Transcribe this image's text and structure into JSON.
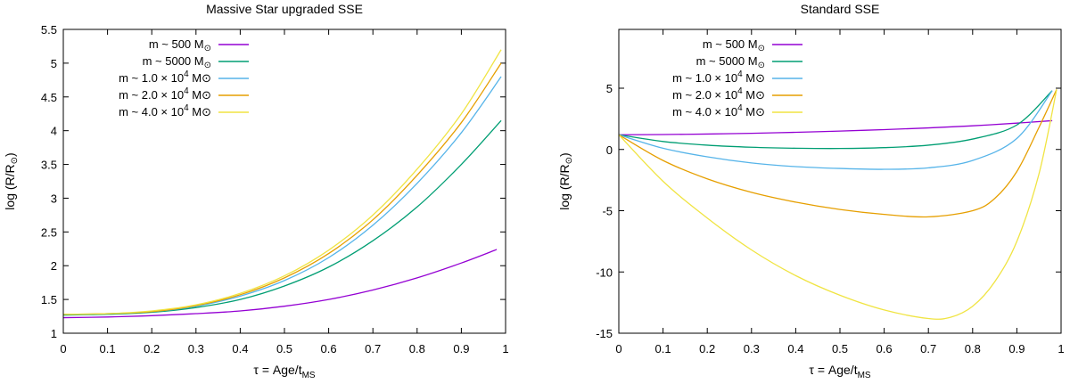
{
  "chart_data": [
    {
      "type": "line",
      "title": "Massive Star upgraded SSE",
      "xlabel": "τ = Age/t",
      "xlabel_sub": "MS",
      "ylabel": "log (R/R",
      "ylabel_sun": "⊙",
      "ylabel_close": ")",
      "xlim": [
        0,
        1
      ],
      "ylim": [
        1,
        5.5
      ],
      "xticks": [
        0,
        0.1,
        0.2,
        0.3,
        0.4,
        0.5,
        0.6,
        0.7,
        0.8,
        0.9,
        1
      ],
      "xtick_labels": [
        "0",
        "0.1",
        "0.2",
        "0.3",
        "0.4",
        "0.5",
        "0.6",
        "0.7",
        "0.8",
        "0.9",
        "1"
      ],
      "yticks": [
        1,
        1.5,
        2,
        2.5,
        3,
        3.5,
        4,
        4.5,
        5,
        5.5
      ],
      "ytick_labels": [
        "1",
        "1.5",
        "2",
        "2.5",
        "3",
        "3.5",
        "4",
        "4.5",
        "5",
        "5.5"
      ],
      "series": [
        {
          "name": "m ~ 500 M⊙",
          "legend": {
            "pre": "m ~ 500 M",
            "sup": "",
            "post": "⊙"
          },
          "color": "#9400d3",
          "points": [
            [
              0,
              1.23
            ],
            [
              0.1,
              1.24
            ],
            [
              0.2,
              1.26
            ],
            [
              0.3,
              1.29
            ],
            [
              0.4,
              1.33
            ],
            [
              0.5,
              1.4
            ],
            [
              0.6,
              1.5
            ],
            [
              0.7,
              1.64
            ],
            [
              0.8,
              1.82
            ],
            [
              0.9,
              2.04
            ],
            [
              0.98,
              2.24
            ]
          ]
        },
        {
          "name": "m ~ 5000 M⊙",
          "legend": {
            "pre": "m ~ 5000 M",
            "sup": "",
            "post": "⊙"
          },
          "color": "#009e73",
          "points": [
            [
              0,
              1.27
            ],
            [
              0.1,
              1.28
            ],
            [
              0.2,
              1.31
            ],
            [
              0.3,
              1.38
            ],
            [
              0.4,
              1.5
            ],
            [
              0.5,
              1.7
            ],
            [
              0.6,
              1.98
            ],
            [
              0.7,
              2.37
            ],
            [
              0.8,
              2.87
            ],
            [
              0.9,
              3.5
            ],
            [
              0.99,
              4.15
            ]
          ]
        },
        {
          "name": "m ~ 1.0 × 10⁴ M⊙",
          "legend": {
            "pre": "m ~ 1.0 × 10",
            "sup": "4",
            "post": " M⊙"
          },
          "color": "#56b4e9",
          "points": [
            [
              0,
              1.28
            ],
            [
              0.1,
              1.29
            ],
            [
              0.2,
              1.32
            ],
            [
              0.3,
              1.4
            ],
            [
              0.4,
              1.55
            ],
            [
              0.5,
              1.78
            ],
            [
              0.6,
              2.12
            ],
            [
              0.7,
              2.6
            ],
            [
              0.8,
              3.22
            ],
            [
              0.9,
              3.97
            ],
            [
              0.99,
              4.8
            ]
          ]
        },
        {
          "name": "m ~ 2.0 × 10⁴ M⊙",
          "legend": {
            "pre": "m ~ 2.0 × 10",
            "sup": "4",
            "post": " M⊙"
          },
          "color": "#e69f00",
          "points": [
            [
              0,
              1.28
            ],
            [
              0.1,
              1.29
            ],
            [
              0.2,
              1.32
            ],
            [
              0.3,
              1.41
            ],
            [
              0.4,
              1.57
            ],
            [
              0.5,
              1.82
            ],
            [
              0.6,
              2.18
            ],
            [
              0.7,
              2.68
            ],
            [
              0.8,
              3.34
            ],
            [
              0.9,
              4.12
            ],
            [
              0.99,
              5.0
            ]
          ]
        },
        {
          "name": "m ~ 4.0 × 10⁴ M⊙",
          "legend": {
            "pre": "m ~ 4.0 × 10",
            "sup": "4",
            "post": " M⊙"
          },
          "color": "#f0e442",
          "points": [
            [
              0,
              1.28
            ],
            [
              0.1,
              1.29
            ],
            [
              0.2,
              1.33
            ],
            [
              0.3,
              1.42
            ],
            [
              0.4,
              1.59
            ],
            [
              0.5,
              1.85
            ],
            [
              0.6,
              2.23
            ],
            [
              0.7,
              2.75
            ],
            [
              0.8,
              3.43
            ],
            [
              0.9,
              4.25
            ],
            [
              0.99,
              5.2
            ]
          ]
        }
      ]
    },
    {
      "type": "line",
      "title": "Standard SSE",
      "xlabel": "τ = Age/t",
      "xlabel_sub": "MS",
      "ylabel": "log (R/R",
      "ylabel_sun": "⊙",
      "ylabel_close": ")",
      "xlim": [
        0,
        1
      ],
      "ylim": [
        -15,
        9.8
      ],
      "xticks": [
        0,
        0.1,
        0.2,
        0.3,
        0.4,
        0.5,
        0.6,
        0.7,
        0.8,
        0.9,
        1
      ],
      "xtick_labels": [
        "0",
        "0.1",
        "0.2",
        "0.3",
        "0.4",
        "0.5",
        "0.6",
        "0.7",
        "0.8",
        "0.9",
        "1"
      ],
      "yticks": [
        -15,
        -10,
        -5,
        0,
        5
      ],
      "ytick_labels": [
        "-15",
        "-10",
        "-5",
        "0",
        "5"
      ],
      "series": [
        {
          "name": "m ~ 500 M⊙",
          "legend": {
            "pre": "m ~ 500 M",
            "sup": "",
            "post": "⊙"
          },
          "color": "#9400d3",
          "points": [
            [
              0,
              1.2
            ],
            [
              0.1,
              1.22
            ],
            [
              0.2,
              1.26
            ],
            [
              0.3,
              1.32
            ],
            [
              0.4,
              1.4
            ],
            [
              0.5,
              1.5
            ],
            [
              0.6,
              1.62
            ],
            [
              0.7,
              1.76
            ],
            [
              0.8,
              1.93
            ],
            [
              0.9,
              2.15
            ],
            [
              0.98,
              2.35
            ]
          ]
        },
        {
          "name": "m ~ 5000 M⊙",
          "legend": {
            "pre": "m ~ 5000 M",
            "sup": "",
            "post": "⊙"
          },
          "color": "#009e73",
          "points": [
            [
              0,
              1.2
            ],
            [
              0.1,
              0.65
            ],
            [
              0.2,
              0.35
            ],
            [
              0.3,
              0.18
            ],
            [
              0.4,
              0.1
            ],
            [
              0.5,
              0.08
            ],
            [
              0.6,
              0.15
            ],
            [
              0.7,
              0.35
            ],
            [
              0.8,
              0.85
            ],
            [
              0.9,
              2.0
            ],
            [
              0.98,
              4.8
            ]
          ]
        },
        {
          "name": "m ~ 1.0 × 10⁴ M⊙",
          "legend": {
            "pre": "m ~ 1.0 × 10",
            "sup": "4",
            "post": " M⊙"
          },
          "color": "#56b4e9",
          "points": [
            [
              0,
              1.2
            ],
            [
              0.1,
              0.1
            ],
            [
              0.2,
              -0.6
            ],
            [
              0.3,
              -1.1
            ],
            [
              0.4,
              -1.4
            ],
            [
              0.5,
              -1.55
            ],
            [
              0.6,
              -1.62
            ],
            [
              0.7,
              -1.5
            ],
            [
              0.8,
              -0.9
            ],
            [
              0.9,
              0.9
            ],
            [
              0.98,
              4.8
            ]
          ]
        },
        {
          "name": "m ~ 2.0 × 10⁴ M⊙",
          "legend": {
            "pre": "m ~ 2.0 × 10",
            "sup": "4",
            "post": " M⊙"
          },
          "color": "#e69f00",
          "points": [
            [
              0,
              1.2
            ],
            [
              0.1,
              -0.9
            ],
            [
              0.2,
              -2.4
            ],
            [
              0.3,
              -3.5
            ],
            [
              0.4,
              -4.3
            ],
            [
              0.5,
              -4.9
            ],
            [
              0.6,
              -5.3
            ],
            [
              0.7,
              -5.5
            ],
            [
              0.8,
              -5.0
            ],
            [
              0.85,
              -4.0
            ],
            [
              0.9,
              -1.8
            ],
            [
              0.95,
              1.8
            ],
            [
              0.99,
              4.9
            ]
          ]
        },
        {
          "name": "m ~ 4.0 × 10⁴ M⊙",
          "legend": {
            "pre": "m ~ 4.0 × 10",
            "sup": "4",
            "post": " M⊙"
          },
          "color": "#f0e442",
          "points": [
            [
              0,
              1.2
            ],
            [
              0.1,
              -2.6
            ],
            [
              0.2,
              -5.6
            ],
            [
              0.3,
              -8.2
            ],
            [
              0.4,
              -10.3
            ],
            [
              0.5,
              -11.9
            ],
            [
              0.6,
              -13.1
            ],
            [
              0.7,
              -13.8
            ],
            [
              0.75,
              -13.7
            ],
            [
              0.8,
              -12.8
            ],
            [
              0.85,
              -10.8
            ],
            [
              0.9,
              -7.5
            ],
            [
              0.95,
              -2.0
            ],
            [
              0.99,
              4.9
            ]
          ]
        }
      ]
    }
  ]
}
